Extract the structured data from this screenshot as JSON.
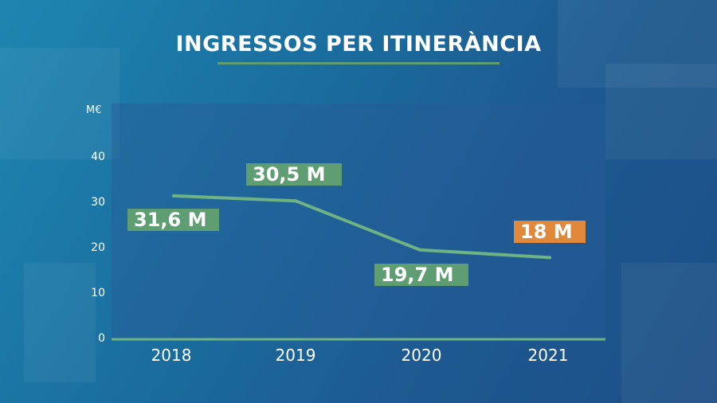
{
  "title": "INGRESSOS PER ITINERÀNCIA",
  "colors": {
    "accent_green": "#5e9e72",
    "highlight_orange": "#e0893a",
    "line": "#6db383"
  },
  "chart_data": {
    "type": "line",
    "title": "INGRESSOS PER ITINERÀNCIA",
    "ylabel": "M€",
    "xlabel": "",
    "x": [
      "2018",
      "2019",
      "2020",
      "2021"
    ],
    "series": [
      {
        "values": [
          31.6,
          30.5,
          19.7,
          18
        ]
      }
    ],
    "data_labels": [
      "31,6 M",
      "30,5 M",
      "19,7 M",
      "18 M"
    ],
    "highlighted_point": "2021",
    "yticks": [
      "0",
      "10",
      "20",
      "30",
      "40"
    ],
    "ylim": [
      0,
      40
    ],
    "grid": false
  }
}
